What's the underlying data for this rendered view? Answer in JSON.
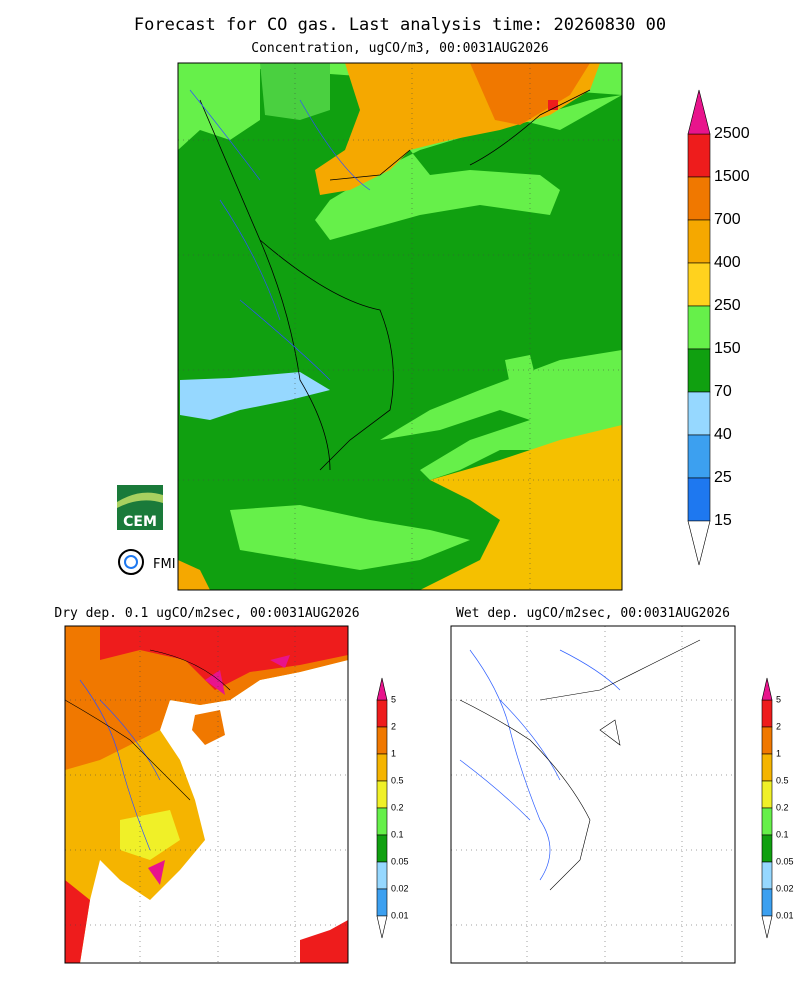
{
  "header": {
    "title": "Forecast for CO gas. Last analysis time: 20260830 00"
  },
  "main_map": {
    "subtitle": "Concentration, ugCO/m3, 00:0031AUG2026",
    "colorbar": {
      "labels": [
        "2500",
        "1500",
        "700",
        "400",
        "250",
        "150",
        "70",
        "40",
        "25",
        "15"
      ],
      "colors": [
        "#ee1c1c",
        "#f07800",
        "#f5a800",
        "#ffd21e",
        "#66f04a",
        "#10a010",
        "#96d8ff",
        "#3ca0f0",
        "#1e78f0"
      ],
      "over_color": "#e8148c",
      "under_color": "#ffffff"
    }
  },
  "logos": {
    "cem": "CEM",
    "fmi": "FMI"
  },
  "dry_map": {
    "subtitle": "Dry dep. 0.1 ugCO/m2sec, 00:0031AUG2026",
    "colorbar": {
      "labels": [
        "5",
        "2",
        "1",
        "0.5",
        "0.2",
        "0.1",
        "0.05",
        "0.02",
        "0.01"
      ],
      "colors": [
        "#ee1c1c",
        "#f07800",
        "#f5b400",
        "#f0f028",
        "#66f04a",
        "#10a010",
        "#96d8ff",
        "#3ca0f0"
      ],
      "over_color": "#e8148c",
      "under_color": "#ffffff"
    }
  },
  "wet_map": {
    "subtitle": "Wet dep. ugCO/m2sec, 00:0031AUG2026",
    "colorbar": {
      "labels": [
        "5",
        "2",
        "1",
        "0.5",
        "0.2",
        "0.1",
        "0.05",
        "0.02",
        "0.01"
      ],
      "colors": [
        "#ee1c1c",
        "#f07800",
        "#f5b400",
        "#f0f028",
        "#66f04a",
        "#10a010",
        "#96d8ff",
        "#3ca0f0"
      ],
      "over_color": "#e8148c",
      "under_color": "#ffffff"
    }
  }
}
